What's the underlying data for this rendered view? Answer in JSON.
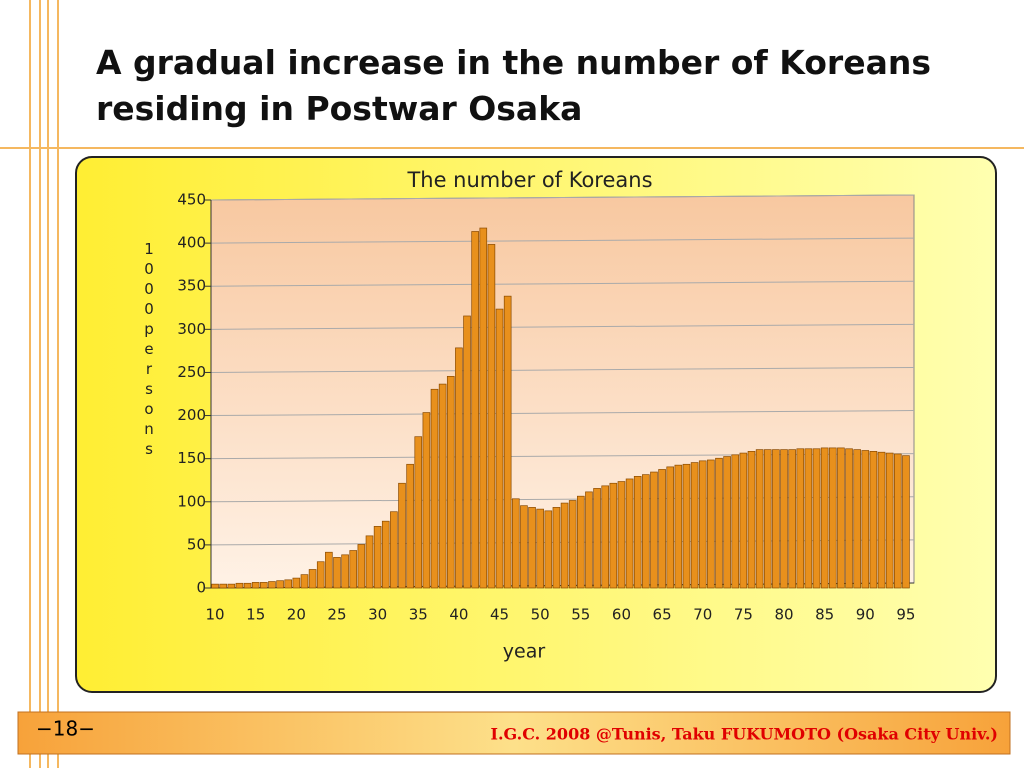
{
  "title": "A gradual increase in the number of Koreans residing in Postwar Osaka",
  "chart_data": {
    "type": "bar",
    "title": "The number of Koreans",
    "xlabel": "year",
    "ylabel": "1000persons",
    "x": [
      10,
      11,
      12,
      13,
      14,
      15,
      16,
      17,
      18,
      19,
      20,
      21,
      22,
      23,
      24,
      25,
      26,
      27,
      28,
      29,
      30,
      31,
      32,
      33,
      34,
      35,
      36,
      37,
      38,
      39,
      40,
      41,
      42,
      43,
      44,
      45,
      46,
      47,
      48,
      49,
      50,
      51,
      52,
      53,
      54,
      55,
      56,
      57,
      58,
      59,
      60,
      61,
      62,
      63,
      64,
      65,
      66,
      67,
      68,
      69,
      70,
      71,
      72,
      73,
      74,
      75,
      76,
      77,
      78,
      79,
      80,
      81,
      82,
      83,
      84,
      85,
      86,
      87,
      88,
      89,
      90,
      91,
      92,
      93,
      94,
      95
    ],
    "values": [
      1,
      1,
      1,
      2,
      2,
      3,
      3,
      4,
      5,
      6,
      8,
      12,
      18,
      27,
      38,
      32,
      35,
      40,
      47,
      57,
      68,
      74,
      85,
      118,
      140,
      172,
      200,
      227,
      233,
      242,
      275,
      312,
      410,
      414,
      395,
      320,
      335,
      100,
      92,
      90,
      88,
      86,
      90,
      95,
      98,
      103,
      108,
      112,
      115,
      118,
      120,
      123,
      126,
      128,
      131,
      134,
      137,
      139,
      140,
      142,
      144,
      145,
      147,
      149,
      151,
      153,
      155,
      157,
      157,
      157,
      157,
      157,
      158,
      158,
      158,
      159,
      159,
      159,
      158,
      157,
      156,
      155,
      154,
      153,
      152,
      150
    ],
    "color": "#e8901c",
    "xlim": [
      9.5,
      95.5
    ],
    "xticks": [
      10,
      15,
      20,
      25,
      30,
      35,
      40,
      45,
      50,
      55,
      60,
      65,
      70,
      75,
      80,
      85,
      90,
      95
    ],
    "ylim": [
      0,
      450
    ],
    "yticks": [
      0,
      50,
      100,
      150,
      200,
      250,
      300,
      350,
      400,
      450
    ],
    "grid": true
  },
  "footer": {
    "page": "−18−",
    "credit": "I.G.C. 2008 @Tunis, Taku FUKUMOTO (Osaka City Univ.)"
  }
}
